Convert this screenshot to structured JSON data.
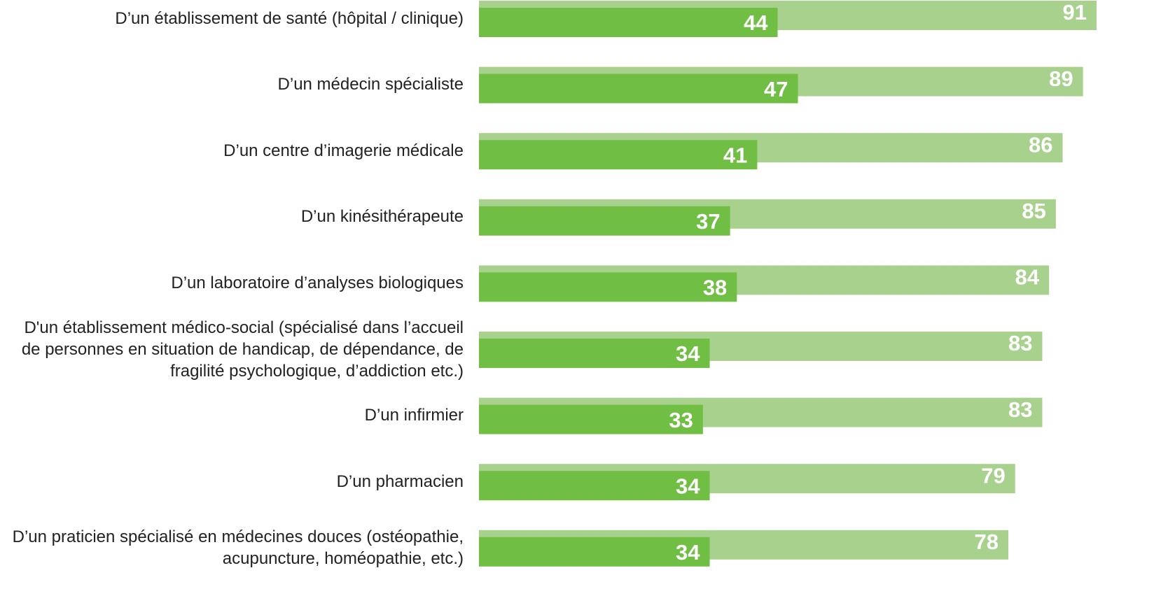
{
  "chart_data": {
    "type": "bar",
    "categories": [
      "D’un établissement de santé (hôpital / clinique)",
      "D’un médecin spécialiste",
      "D’un centre d’imagerie médicale",
      "D’un kinésithérapeute",
      "D’un laboratoire d’analyses biologiques",
      "D'un établissement médico-social (spécialisé dans l’accueil de personnes en situation de handicap, de dépendance, de fragilité psychologique, d’addiction etc.)",
      "D’un infirmier",
      "D’un pharmacien",
      "D’un praticien spécialisé en médecines douces (ostéopathie, acupuncture, homéopathie, etc.)"
    ],
    "series": [
      {
        "color": "#a9d18e",
        "values": [
          91,
          89,
          86,
          85,
          84,
          83,
          83,
          79,
          78
        ]
      },
      {
        "color": "#70bf44",
        "values": [
          44,
          47,
          41,
          37,
          38,
          34,
          33,
          34,
          34
        ]
      }
    ]
  }
}
